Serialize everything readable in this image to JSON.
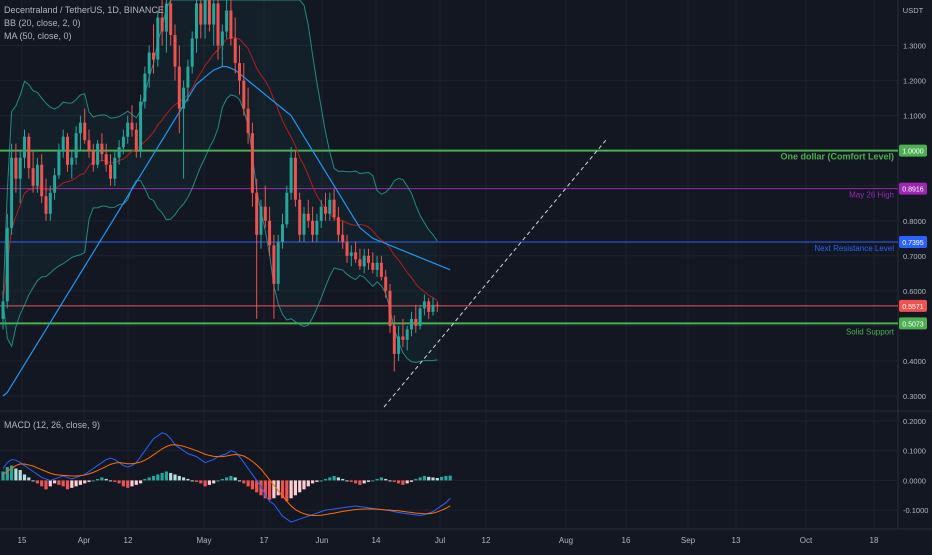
{
  "legend": {
    "title": "Decentraland / TetherUS, 1D, BINANCE",
    "bb": "BB (20, close, 2, 0)",
    "ma": "MA (50, close, 0)",
    "macd": "MACD (12, 26, close, 9)"
  },
  "currency": "USDT",
  "colors": {
    "background": "#131722",
    "grid": "#1e222d",
    "text": "#b2b5be",
    "up": "#26a69a",
    "down": "#ef5350",
    "green_level": "#4caf50",
    "purple_level": "#9c27b0",
    "blue_level": "#2962ff",
    "ma": "#2196f3",
    "bb_basis": "#b71c1c",
    "bb_band": "#26a69a",
    "macd_line": "#2962ff",
    "signal_line": "#ff6d00"
  },
  "x_axis_labels": [
    "15",
    "Apr",
    "12",
    "May",
    "17",
    "Jun",
    "14",
    "Jul",
    "12",
    "Aug",
    "16",
    "Sep",
    "13",
    "Oct",
    "18"
  ],
  "price_axis_labels": [
    "1.3000",
    "1.2000",
    "1.1000",
    "0.8000",
    "0.7000",
    "0.6000",
    "0.4000",
    "0.3000"
  ],
  "macd_axis_labels": [
    "0.2000",
    "0.1000",
    "0.0000",
    "-0.1000"
  ],
  "levels": [
    {
      "price": 1.0,
      "label": "One dollar (Comfort Level)",
      "badge": "1.0000",
      "color": "#4caf50",
      "width": 2
    },
    {
      "price": 0.8916,
      "label": "May 26 High",
      "badge": "0.8916",
      "color": "#9c27b0",
      "width": 1
    },
    {
      "price": 0.7395,
      "label": "Next Resistance Level",
      "badge": "0.7395",
      "color": "#2962ff",
      "width": 1
    },
    {
      "price": 0.5571,
      "label": "",
      "badge": "0.5571",
      "color": "#ef5350",
      "width": 1
    },
    {
      "price": 0.5073,
      "label": "Solid Support",
      "badge": "0.5073",
      "color": "#4caf50",
      "width": 2
    }
  ],
  "chart_data": {
    "type": "candlestick",
    "symbol": "Decentraland / TetherUS",
    "interval": "1D",
    "exchange": "BINANCE",
    "price_range": [
      0.26,
      1.43
    ],
    "candles": [
      {
        "o": 0.52,
        "h": 0.6,
        "l": 0.49,
        "c": 0.57
      },
      {
        "o": 0.57,
        "h": 0.82,
        "l": 0.55,
        "c": 0.78
      },
      {
        "o": 0.78,
        "h": 1.02,
        "l": 0.76,
        "c": 0.98
      },
      {
        "o": 0.98,
        "h": 1.02,
        "l": 0.88,
        "c": 0.92
      },
      {
        "o": 0.92,
        "h": 1.0,
        "l": 0.85,
        "c": 0.98
      },
      {
        "o": 0.98,
        "h": 1.06,
        "l": 0.95,
        "c": 1.04
      },
      {
        "o": 1.04,
        "h": 1.05,
        "l": 0.92,
        "c": 0.95
      },
      {
        "o": 0.95,
        "h": 1.0,
        "l": 0.88,
        "c": 0.9
      },
      {
        "o": 0.9,
        "h": 0.98,
        "l": 0.88,
        "c": 0.96
      },
      {
        "o": 0.96,
        "h": 0.99,
        "l": 0.85,
        "c": 0.87
      },
      {
        "o": 0.87,
        "h": 0.92,
        "l": 0.8,
        "c": 0.82
      },
      {
        "o": 0.82,
        "h": 0.9,
        "l": 0.8,
        "c": 0.88
      },
      {
        "o": 0.88,
        "h": 0.95,
        "l": 0.86,
        "c": 0.93
      },
      {
        "o": 0.93,
        "h": 1.02,
        "l": 0.92,
        "c": 1.0
      },
      {
        "o": 1.0,
        "h": 1.06,
        "l": 0.98,
        "c": 1.04
      },
      {
        "o": 1.04,
        "h": 1.05,
        "l": 0.94,
        "c": 0.96
      },
      {
        "o": 0.96,
        "h": 1.0,
        "l": 0.92,
        "c": 0.98
      },
      {
        "o": 0.98,
        "h": 1.07,
        "l": 0.96,
        "c": 1.05
      },
      {
        "o": 1.05,
        "h": 1.1,
        "l": 1.0,
        "c": 1.08
      },
      {
        "o": 1.08,
        "h": 1.12,
        "l": 1.02,
        "c": 1.03
      },
      {
        "o": 1.03,
        "h": 1.06,
        "l": 0.98,
        "c": 1.0
      },
      {
        "o": 1.0,
        "h": 1.02,
        "l": 0.94,
        "c": 0.96
      },
      {
        "o": 0.96,
        "h": 1.03,
        "l": 0.95,
        "c": 1.02
      },
      {
        "o": 1.02,
        "h": 1.05,
        "l": 0.97,
        "c": 0.99
      },
      {
        "o": 0.99,
        "h": 1.02,
        "l": 0.94,
        "c": 0.96
      },
      {
        "o": 0.96,
        "h": 0.99,
        "l": 0.9,
        "c": 0.92
      },
      {
        "o": 0.92,
        "h": 1.0,
        "l": 0.9,
        "c": 0.98
      },
      {
        "o": 0.98,
        "h": 1.03,
        "l": 0.96,
        "c": 1.01
      },
      {
        "o": 1.01,
        "h": 1.06,
        "l": 0.99,
        "c": 1.04
      },
      {
        "o": 1.04,
        "h": 1.1,
        "l": 1.02,
        "c": 1.08
      },
      {
        "o": 1.08,
        "h": 1.13,
        "l": 1.04,
        "c": 1.06
      },
      {
        "o": 1.06,
        "h": 1.08,
        "l": 0.98,
        "c": 1.0
      },
      {
        "o": 1.0,
        "h": 1.16,
        "l": 0.98,
        "c": 1.14
      },
      {
        "o": 1.14,
        "h": 1.24,
        "l": 1.12,
        "c": 1.22
      },
      {
        "o": 1.22,
        "h": 1.3,
        "l": 1.18,
        "c": 1.28
      },
      {
        "o": 1.28,
        "h": 1.36,
        "l": 1.22,
        "c": 1.26
      },
      {
        "o": 1.26,
        "h": 1.4,
        "l": 1.24,
        "c": 1.38
      },
      {
        "o": 1.38,
        "h": 1.44,
        "l": 1.3,
        "c": 1.34
      },
      {
        "o": 1.34,
        "h": 1.44,
        "l": 1.28,
        "c": 1.42
      },
      {
        "o": 1.42,
        "h": 1.44,
        "l": 1.3,
        "c": 1.33
      },
      {
        "o": 1.33,
        "h": 1.36,
        "l": 1.2,
        "c": 1.24
      },
      {
        "o": 1.24,
        "h": 1.3,
        "l": 1.05,
        "c": 1.12
      },
      {
        "o": 1.12,
        "h": 1.2,
        "l": 0.92,
        "c": 1.18
      },
      {
        "o": 1.18,
        "h": 1.26,
        "l": 1.14,
        "c": 1.24
      },
      {
        "o": 1.24,
        "h": 1.34,
        "l": 1.22,
        "c": 1.32
      },
      {
        "o": 1.32,
        "h": 1.44,
        "l": 1.28,
        "c": 1.42
      },
      {
        "o": 1.42,
        "h": 1.44,
        "l": 1.32,
        "c": 1.36
      },
      {
        "o": 1.36,
        "h": 1.44,
        "l": 1.32,
        "c": 1.43
      },
      {
        "o": 1.43,
        "h": 1.44,
        "l": 1.34,
        "c": 1.36
      },
      {
        "o": 1.36,
        "h": 1.44,
        "l": 1.3,
        "c": 1.42
      },
      {
        "o": 1.42,
        "h": 1.44,
        "l": 1.26,
        "c": 1.3
      },
      {
        "o": 1.3,
        "h": 1.36,
        "l": 1.24,
        "c": 1.34
      },
      {
        "o": 1.34,
        "h": 1.44,
        "l": 1.32,
        "c": 1.4
      },
      {
        "o": 1.4,
        "h": 1.44,
        "l": 1.3,
        "c": 1.32
      },
      {
        "o": 1.32,
        "h": 1.38,
        "l": 1.22,
        "c": 1.25
      },
      {
        "o": 1.25,
        "h": 1.3,
        "l": 1.16,
        "c": 1.2
      },
      {
        "o": 1.2,
        "h": 1.25,
        "l": 1.1,
        "c": 1.12
      },
      {
        "o": 1.12,
        "h": 1.18,
        "l": 1.02,
        "c": 1.05
      },
      {
        "o": 1.05,
        "h": 1.08,
        "l": 0.84,
        "c": 0.88
      },
      {
        "o": 0.88,
        "h": 0.92,
        "l": 0.52,
        "c": 0.76
      },
      {
        "o": 0.76,
        "h": 0.86,
        "l": 0.72,
        "c": 0.84
      },
      {
        "o": 0.84,
        "h": 0.9,
        "l": 0.78,
        "c": 0.8
      },
      {
        "o": 0.8,
        "h": 0.84,
        "l": 0.7,
        "c": 0.73
      },
      {
        "o": 0.73,
        "h": 0.76,
        "l": 0.52,
        "c": 0.62
      },
      {
        "o": 0.62,
        "h": 0.76,
        "l": 0.6,
        "c": 0.74
      },
      {
        "o": 0.74,
        "h": 0.82,
        "l": 0.72,
        "c": 0.79
      },
      {
        "o": 0.79,
        "h": 0.9,
        "l": 0.78,
        "c": 0.88
      },
      {
        "o": 0.88,
        "h": 1.01,
        "l": 0.86,
        "c": 0.98
      },
      {
        "o": 0.98,
        "h": 1.0,
        "l": 0.84,
        "c": 0.86
      },
      {
        "o": 0.86,
        "h": 0.88,
        "l": 0.74,
        "c": 0.76
      },
      {
        "o": 0.76,
        "h": 0.84,
        "l": 0.74,
        "c": 0.82
      },
      {
        "o": 0.82,
        "h": 0.86,
        "l": 0.78,
        "c": 0.8
      },
      {
        "o": 0.8,
        "h": 0.84,
        "l": 0.74,
        "c": 0.76
      },
      {
        "o": 0.76,
        "h": 0.82,
        "l": 0.74,
        "c": 0.8
      },
      {
        "o": 0.8,
        "h": 0.86,
        "l": 0.78,
        "c": 0.84
      },
      {
        "o": 0.84,
        "h": 0.88,
        "l": 0.8,
        "c": 0.82
      },
      {
        "o": 0.82,
        "h": 0.88,
        "l": 0.8,
        "c": 0.86
      },
      {
        "o": 0.86,
        "h": 0.89,
        "l": 0.8,
        "c": 0.81
      },
      {
        "o": 0.81,
        "h": 0.84,
        "l": 0.74,
        "c": 0.76
      },
      {
        "o": 0.76,
        "h": 0.8,
        "l": 0.72,
        "c": 0.74
      },
      {
        "o": 0.74,
        "h": 0.76,
        "l": 0.68,
        "c": 0.7
      },
      {
        "o": 0.7,
        "h": 0.73,
        "l": 0.67,
        "c": 0.71
      },
      {
        "o": 0.71,
        "h": 0.74,
        "l": 0.68,
        "c": 0.69
      },
      {
        "o": 0.69,
        "h": 0.72,
        "l": 0.66,
        "c": 0.67
      },
      {
        "o": 0.67,
        "h": 0.72,
        "l": 0.65,
        "c": 0.7
      },
      {
        "o": 0.7,
        "h": 0.72,
        "l": 0.66,
        "c": 0.68
      },
      {
        "o": 0.68,
        "h": 0.71,
        "l": 0.65,
        "c": 0.66
      },
      {
        "o": 0.66,
        "h": 0.7,
        "l": 0.64,
        "c": 0.68
      },
      {
        "o": 0.68,
        "h": 0.7,
        "l": 0.63,
        "c": 0.64
      },
      {
        "o": 0.64,
        "h": 0.66,
        "l": 0.58,
        "c": 0.6
      },
      {
        "o": 0.6,
        "h": 0.62,
        "l": 0.48,
        "c": 0.5
      },
      {
        "o": 0.5,
        "h": 0.53,
        "l": 0.37,
        "c": 0.42
      },
      {
        "o": 0.42,
        "h": 0.5,
        "l": 0.4,
        "c": 0.47
      },
      {
        "o": 0.47,
        "h": 0.52,
        "l": 0.44,
        "c": 0.46
      },
      {
        "o": 0.46,
        "h": 0.5,
        "l": 0.43,
        "c": 0.49
      },
      {
        "o": 0.49,
        "h": 0.54,
        "l": 0.47,
        "c": 0.52
      },
      {
        "o": 0.52,
        "h": 0.56,
        "l": 0.48,
        "c": 0.5
      },
      {
        "o": 0.5,
        "h": 0.56,
        "l": 0.49,
        "c": 0.55
      },
      {
        "o": 0.55,
        "h": 0.59,
        "l": 0.53,
        "c": 0.57
      },
      {
        "o": 0.57,
        "h": 0.58,
        "l": 0.52,
        "c": 0.54
      },
      {
        "o": 0.54,
        "h": 0.58,
        "l": 0.53,
        "c": 0.56
      },
      {
        "o": 0.56,
        "h": 0.57,
        "l": 0.54,
        "c": 0.557
      }
    ],
    "ma50": [
      0.3,
      0.31,
      0.33,
      0.35,
      0.37,
      0.39,
      0.41,
      0.43,
      0.45,
      0.47,
      0.49,
      0.51,
      0.53,
      0.55,
      0.57,
      0.59,
      0.61,
      0.63,
      0.65,
      0.67,
      0.69,
      0.71,
      0.73,
      0.75,
      0.77,
      0.79,
      0.81,
      0.83,
      0.85,
      0.87,
      0.89,
      0.91,
      0.93,
      0.95,
      0.97,
      0.99,
      1.01,
      1.03,
      1.05,
      1.07,
      1.09,
      1.11,
      1.13,
      1.15,
      1.17,
      1.19,
      1.2,
      1.21,
      1.22,
      1.23,
      1.235,
      1.24,
      1.24,
      1.235,
      1.23,
      1.22,
      1.21,
      1.2,
      1.19,
      1.18,
      1.17,
      1.16,
      1.15,
      1.14,
      1.13,
      1.12,
      1.11,
      1.1,
      1.08,
      1.06,
      1.04,
      1.02,
      1.0,
      0.98,
      0.96,
      0.94,
      0.92,
      0.9,
      0.88,
      0.86,
      0.84,
      0.82,
      0.8,
      0.78,
      0.77,
      0.76,
      0.75,
      0.745,
      0.74,
      0.735,
      0.73,
      0.725,
      0.72,
      0.715,
      0.71,
      0.705,
      0.7,
      0.695,
      0.69,
      0.685,
      0.68,
      0.675,
      0.67,
      0.665,
      0.66
    ],
    "macd": {
      "range": [
        -0.16,
        0.23
      ],
      "histogram": [
        0.03,
        0.045,
        0.05,
        0.04,
        0.035,
        0.02,
        0.01,
        0.0,
        -0.01,
        -0.02,
        -0.03,
        -0.02,
        -0.01,
        -0.015,
        -0.02,
        -0.03,
        -0.025,
        -0.02,
        -0.015,
        -0.01,
        -0.005,
        0.0,
        0.005,
        0.01,
        0.005,
        0.0,
        -0.005,
        -0.01,
        -0.02,
        -0.025,
        -0.02,
        -0.015,
        -0.01,
        0.005,
        0.01,
        0.015,
        0.02,
        0.025,
        0.03,
        0.025,
        0.02,
        0.015,
        0.01,
        0.005,
        0.0,
        -0.005,
        -0.01,
        -0.02,
        -0.015,
        -0.01,
        0.0,
        0.005,
        0.01,
        0.015,
        0.01,
        0.0,
        -0.01,
        -0.02,
        -0.03,
        -0.04,
        -0.05,
        -0.06,
        -0.065,
        -0.06,
        -0.05,
        -0.06,
        -0.07,
        -0.06,
        -0.05,
        -0.04,
        -0.03,
        -0.02,
        -0.01,
        -0.005,
        0.0,
        0.005,
        0.01,
        0.015,
        0.01,
        0.005,
        0.0,
        -0.005,
        -0.01,
        -0.015,
        -0.01,
        -0.005,
        0.0,
        0.005,
        0.01,
        0.005,
        0.0,
        -0.005,
        -0.01,
        -0.015,
        -0.01,
        -0.005,
        0.005,
        0.01,
        0.015,
        0.012,
        0.01,
        0.008,
        0.012,
        0.015,
        0.016
      ],
      "macd_line": [
        0.04,
        0.06,
        0.07,
        0.068,
        0.06,
        0.05,
        0.04,
        0.03,
        0.02,
        0.01,
        0.005,
        0.0,
        0.005,
        0.01,
        0.015,
        0.01,
        0.005,
        0.01,
        0.015,
        0.02,
        0.03,
        0.04,
        0.05,
        0.06,
        0.07,
        0.075,
        0.07,
        0.06,
        0.05,
        0.045,
        0.05,
        0.06,
        0.08,
        0.1,
        0.12,
        0.14,
        0.15,
        0.16,
        0.155,
        0.14,
        0.12,
        0.11,
        0.1,
        0.09,
        0.085,
        0.08,
        0.07,
        0.06,
        0.065,
        0.07,
        0.08,
        0.085,
        0.09,
        0.1,
        0.095,
        0.08,
        0.06,
        0.04,
        0.02,
        0.0,
        -0.02,
        -0.05,
        -0.07,
        -0.08,
        -0.1,
        -0.12,
        -0.13,
        -0.14,
        -0.135,
        -0.13,
        -0.125,
        -0.12,
        -0.115,
        -0.11,
        -0.105,
        -0.1,
        -0.098,
        -0.096,
        -0.094,
        -0.092,
        -0.09,
        -0.088,
        -0.086,
        -0.088,
        -0.09,
        -0.092,
        -0.094,
        -0.096,
        -0.098,
        -0.1,
        -0.102,
        -0.105,
        -0.108,
        -0.11,
        -0.112,
        -0.114,
        -0.116,
        -0.118,
        -0.115,
        -0.11,
        -0.105,
        -0.095,
        -0.085,
        -0.075,
        -0.06
      ],
      "signal_line": [
        0.02,
        0.03,
        0.04,
        0.05,
        0.055,
        0.055,
        0.052,
        0.048,
        0.042,
        0.036,
        0.03,
        0.024,
        0.02,
        0.018,
        0.017,
        0.016,
        0.015,
        0.015,
        0.016,
        0.018,
        0.022,
        0.027,
        0.033,
        0.04,
        0.047,
        0.054,
        0.058,
        0.06,
        0.058,
        0.056,
        0.056,
        0.058,
        0.062,
        0.068,
        0.076,
        0.086,
        0.096,
        0.106,
        0.114,
        0.119,
        0.12,
        0.118,
        0.115,
        0.11,
        0.105,
        0.1,
        0.094,
        0.088,
        0.084,
        0.081,
        0.08,
        0.08,
        0.082,
        0.085,
        0.087,
        0.086,
        0.082,
        0.074,
        0.064,
        0.052,
        0.038,
        0.02,
        0.002,
        -0.016,
        -0.034,
        -0.052,
        -0.07,
        -0.086,
        -0.098,
        -0.106,
        -0.112,
        -0.116,
        -0.118,
        -0.118,
        -0.117,
        -0.115,
        -0.112,
        -0.11,
        -0.107,
        -0.104,
        -0.102,
        -0.1,
        -0.098,
        -0.097,
        -0.096,
        -0.096,
        -0.096,
        -0.097,
        -0.098,
        -0.099,
        -0.1,
        -0.101,
        -0.102,
        -0.104,
        -0.106,
        -0.108,
        -0.11,
        -0.111,
        -0.112,
        -0.112,
        -0.11,
        -0.106,
        -0.1,
        -0.094,
        -0.085
      ]
    }
  }
}
